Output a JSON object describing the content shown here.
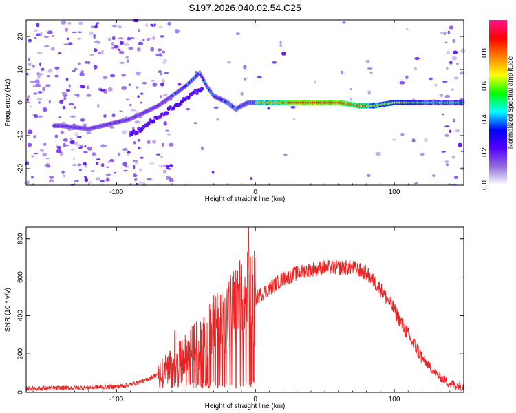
{
  "title": "S197.2026.040.02.54.C25",
  "chart_data": [
    {
      "type": "heatmap",
      "name": "spectrogram",
      "xlabel": "Height of straight line (km)",
      "ylabel": "Frequency (Hz)",
      "xlim": [
        -165,
        150
      ],
      "ylim": [
        -25,
        25
      ],
      "xticks": [
        -100,
        0,
        100
      ],
      "yticks": [
        -20,
        -10,
        0,
        10,
        20
      ],
      "ridge": {
        "description": "main frequency track",
        "points": [
          [
            -140,
            -7
          ],
          [
            -120,
            -8
          ],
          [
            -100,
            -6
          ],
          [
            -90,
            -5
          ],
          [
            -80,
            -3
          ],
          [
            -70,
            -1
          ],
          [
            -60,
            2
          ],
          [
            -50,
            5
          ],
          [
            -40,
            9
          ],
          [
            -35,
            5
          ],
          [
            -30,
            2
          ],
          [
            -25,
            1
          ],
          [
            -20,
            0
          ],
          [
            -14,
            -2
          ],
          [
            -10,
            -1
          ],
          [
            -5,
            0
          ],
          [
            0,
            0
          ],
          [
            20,
            0
          ],
          [
            40,
            0
          ],
          [
            60,
            0
          ],
          [
            75,
            -1
          ],
          [
            85,
            -1
          ],
          [
            100,
            0
          ],
          [
            120,
            0
          ],
          [
            140,
            0
          ],
          [
            150,
            0
          ]
        ]
      },
      "colorbar": {
        "label": "Normalized spectral amplitude",
        "ticks": [
          "0.0",
          "0.2",
          "0.4",
          "0.6",
          "0.8"
        ],
        "range": [
          0,
          1
        ],
        "colors": [
          "#ffffff",
          "#9370db",
          "#5500ff",
          "#0000ff",
          "#00ffff",
          "#00ff00",
          "#ffff00",
          "#ff7f00",
          "#ff0000",
          "#ff1493"
        ]
      }
    },
    {
      "type": "line",
      "name": "snr",
      "xlabel": "Height of straight line (km)",
      "ylabel": "SNR (10 * v/v)",
      "xlim": [
        -165,
        150
      ],
      "ylim": [
        0,
        860
      ],
      "xticks": [
        -100,
        0,
        100
      ],
      "yticks": [
        0,
        200,
        400,
        600,
        800
      ],
      "color": "#ee2222",
      "envelope": {
        "x": [
          -165,
          -120,
          -100,
          -90,
          -80,
          -70,
          -65,
          -60,
          -55,
          -50,
          -45,
          -40,
          -35,
          -30,
          -25,
          -20,
          -15,
          -10,
          -5,
          0,
          10,
          20,
          30,
          40,
          50,
          60,
          70,
          80,
          90,
          100,
          110,
          120,
          130,
          140,
          150
        ],
        "y": [
          20,
          25,
          30,
          40,
          60,
          95,
          130,
          150,
          170,
          200,
          230,
          260,
          290,
          330,
          360,
          400,
          430,
          460,
          480,
          490,
          540,
          590,
          620,
          640,
          650,
          650,
          650,
          620,
          540,
          430,
          300,
          180,
          95,
          45,
          30
        ]
      },
      "spikes": [
        {
          "x": -58,
          "y": 320
        },
        {
          "x": -37,
          "y": 390
        },
        {
          "x": -23,
          "y": 470
        },
        {
          "x": -12,
          "y": 560
        },
        {
          "x": -5,
          "y": 860
        }
      ]
    }
  ]
}
